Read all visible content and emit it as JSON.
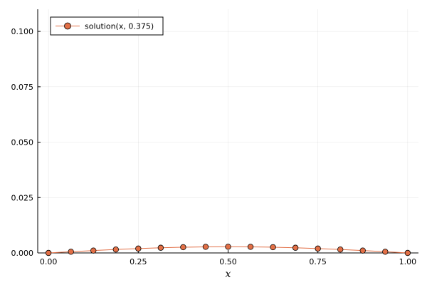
{
  "chart_data": {
    "type": "line",
    "title": "",
    "xlabel": "x",
    "ylabel": "",
    "xlim": [
      -0.03,
      1.03
    ],
    "ylim": [
      0.0,
      0.11
    ],
    "xticks": [
      0.0,
      0.25,
      0.5,
      0.75,
      1.0
    ],
    "xtick_labels": [
      "0.00",
      "0.25",
      "0.50",
      "0.75",
      "1.00"
    ],
    "yticks": [
      0.0,
      0.025,
      0.05,
      0.075,
      0.1
    ],
    "ytick_labels": [
      "0.000",
      "0.025",
      "0.050",
      "0.075",
      "0.100"
    ],
    "grid": true,
    "legend_position": "top-left",
    "series": [
      {
        "name": "solution(x, 0.375)",
        "color": "#e26f46",
        "marker": "circle",
        "x": [
          0.0,
          0.0625,
          0.125,
          0.1875,
          0.25,
          0.3125,
          0.375,
          0.4375,
          0.5,
          0.5625,
          0.625,
          0.6875,
          0.75,
          0.8125,
          0.875,
          0.9375,
          1.0
        ],
        "y": [
          0.0,
          0.00055,
          0.00107,
          0.00155,
          0.00198,
          0.00234,
          0.00259,
          0.00275,
          0.0028,
          0.00275,
          0.00259,
          0.00234,
          0.00198,
          0.00155,
          0.00107,
          0.00055,
          0.0
        ]
      }
    ]
  }
}
